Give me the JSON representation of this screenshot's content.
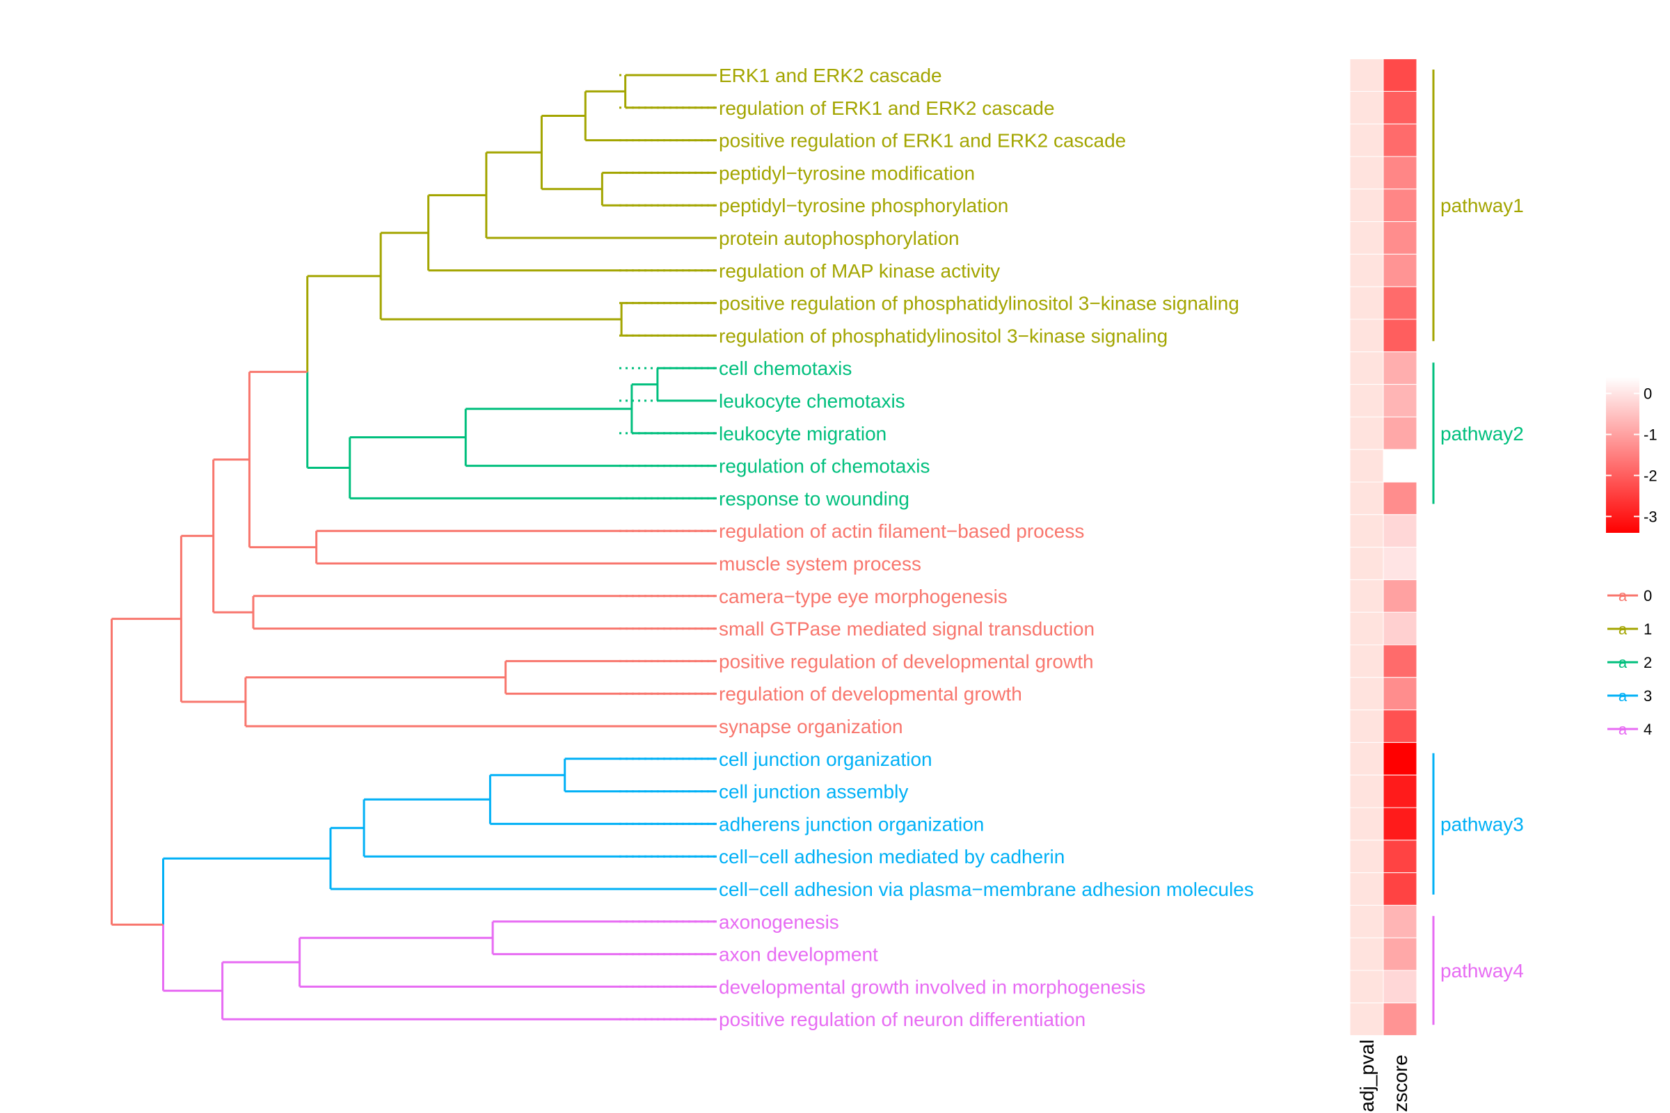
{
  "chart_data": {
    "type": "dendrogram-heatmap",
    "term_label_color_source": "cluster",
    "clusters": [
      {
        "id": "0",
        "color": "#F8766D"
      },
      {
        "id": "1",
        "color": "#A3A500"
      },
      {
        "id": "2",
        "color": "#00BF7D"
      },
      {
        "id": "3",
        "color": "#00B0F6"
      },
      {
        "id": "4",
        "color": "#E76BF3"
      }
    ],
    "terms": [
      {
        "label": "ERK1 and ERK2 cascade",
        "cluster": "1",
        "zscore": -2.3,
        "adj_pval_shade": 0.13
      },
      {
        "label": "regulation of ERK1 and ERK2 cascade",
        "cluster": "1",
        "zscore": -2.0,
        "adj_pval_shade": 0.13
      },
      {
        "label": "positive regulation of ERK1 and ERK2 cascade",
        "cluster": "1",
        "zscore": -1.8,
        "adj_pval_shade": 0.13
      },
      {
        "label": "peptidyl−tyrosine modification",
        "cluster": "1",
        "zscore": -1.4,
        "adj_pval_shade": 0.13
      },
      {
        "label": "peptidyl−tyrosine phosphorylation",
        "cluster": "1",
        "zscore": -1.4,
        "adj_pval_shade": 0.13
      },
      {
        "label": "protein autophosphorylation",
        "cluster": "1",
        "zscore": -1.3,
        "adj_pval_shade": 0.13
      },
      {
        "label": "regulation of MAP kinase activity",
        "cluster": "1",
        "zscore": -1.2,
        "adj_pval_shade": 0.13
      },
      {
        "label": "positive regulation of phosphatidylinositol 3−kinase signaling",
        "cluster": "1",
        "zscore": -1.8,
        "adj_pval_shade": 0.13
      },
      {
        "label": "regulation of phosphatidylinositol 3−kinase signaling",
        "cluster": "1",
        "zscore": -2.0,
        "adj_pval_shade": 0.13
      },
      {
        "label": "cell chemotaxis",
        "cluster": "2",
        "zscore": -0.8,
        "adj_pval_shade": 0.13
      },
      {
        "label": "leukocyte chemotaxis",
        "cluster": "2",
        "zscore": -0.7,
        "adj_pval_shade": 0.13
      },
      {
        "label": "leukocyte migration",
        "cluster": "2",
        "zscore": -0.9,
        "adj_pval_shade": 0.13
      },
      {
        "label": "regulation of chemotaxis",
        "cluster": "2",
        "zscore": 0.4,
        "adj_pval_shade": 0.13
      },
      {
        "label": "response to wounding",
        "cluster": "2",
        "zscore": -1.3,
        "adj_pval_shade": 0.13
      },
      {
        "label": "regulation of actin filament−based process",
        "cluster": "0",
        "zscore": -0.2,
        "adj_pval_shade": 0.13
      },
      {
        "label": "muscle system process",
        "cluster": "0",
        "zscore": 0.0,
        "adj_pval_shade": 0.13
      },
      {
        "label": "camera−type eye morphogenesis",
        "cluster": "0",
        "zscore": -1.0,
        "adj_pval_shade": 0.13
      },
      {
        "label": "small GTPase mediated signal transduction",
        "cluster": "0",
        "zscore": -0.3,
        "adj_pval_shade": 0.13
      },
      {
        "label": "positive regulation of developmental growth",
        "cluster": "0",
        "zscore": -1.8,
        "adj_pval_shade": 0.13
      },
      {
        "label": "regulation of developmental growth",
        "cluster": "0",
        "zscore": -1.3,
        "adj_pval_shade": 0.13
      },
      {
        "label": "synapse organization",
        "cluster": "0",
        "zscore": -2.2,
        "adj_pval_shade": 0.13
      },
      {
        "label": "cell junction organization",
        "cluster": "3",
        "zscore": -3.4,
        "adj_pval_shade": 0.13
      },
      {
        "label": "cell junction assembly",
        "cluster": "3",
        "zscore": -3.0,
        "adj_pval_shade": 0.13
      },
      {
        "label": "adherens junction organization",
        "cluster": "3",
        "zscore": -3.0,
        "adj_pval_shade": 0.13
      },
      {
        "label": "cell−cell adhesion mediated by cadherin",
        "cluster": "3",
        "zscore": -2.4,
        "adj_pval_shade": 0.13
      },
      {
        "label": "cell−cell adhesion via plasma−membrane adhesion molecules",
        "cluster": "3",
        "zscore": -2.4,
        "adj_pval_shade": 0.13
      },
      {
        "label": "axonogenesis",
        "cluster": "4",
        "zscore": -0.7,
        "adj_pval_shade": 0.13
      },
      {
        "label": "axon development",
        "cluster": "4",
        "zscore": -0.9,
        "adj_pval_shade": 0.13
      },
      {
        "label": "developmental growth involved in morphogenesis",
        "cluster": "4",
        "zscore": -0.2,
        "adj_pval_shade": 0.13
      },
      {
        "label": "positive regulation of neuron differentiation",
        "cluster": "4",
        "zscore": -1.2,
        "adj_pval_shade": 0.13
      }
    ],
    "dendrogram": [
      {
        "node": "n1",
        "children": [
          0,
          1
        ],
        "height": 0.355
      },
      {
        "node": "n2",
        "children": [
          "n1",
          2
        ],
        "height": 0.51
      },
      {
        "node": "n3",
        "children": [
          3,
          4
        ],
        "height": 0.445
      },
      {
        "node": "n4",
        "children": [
          "n2",
          "n3"
        ],
        "height": 0.68
      },
      {
        "node": "n5",
        "children": [
          "n4",
          5
        ],
        "height": 0.895
      },
      {
        "node": "n6",
        "children": [
          "n5",
          6
        ],
        "height": 1.12
      },
      {
        "node": "n7",
        "children": [
          7,
          8
        ],
        "height": 0.37
      },
      {
        "node": "n8",
        "children": [
          "n6",
          "n7"
        ],
        "height": 1.305
      },
      {
        "node": "n9",
        "children": [
          9,
          10
        ],
        "height": 0.23
      },
      {
        "node": "n10",
        "children": [
          "n9",
          11
        ],
        "height": 0.33
      },
      {
        "node": "n11",
        "children": [
          "n10",
          12
        ],
        "height": 0.975
      },
      {
        "node": "n12",
        "children": [
          "n11",
          13
        ],
        "height": 1.425
      },
      {
        "node": "n13",
        "children": [
          "n8",
          "n12"
        ],
        "height": 1.59
      },
      {
        "node": "n14",
        "children": [
          14,
          15
        ],
        "height": 1.555
      },
      {
        "node": "n15",
        "children": [
          "n13",
          "n14"
        ],
        "height": 1.815
      },
      {
        "node": "n16",
        "children": [
          16,
          17
        ],
        "height": 1.8
      },
      {
        "node": "n17",
        "children": [
          "n15",
          "n16"
        ],
        "height": 1.955
      },
      {
        "node": "n18",
        "children": [
          18,
          19
        ],
        "height": 0.82
      },
      {
        "node": "n19",
        "children": [
          "n18",
          20
        ],
        "height": 1.83
      },
      {
        "node": "n20",
        "children": [
          "n17",
          "n19"
        ],
        "height": 2.08
      },
      {
        "node": "n21",
        "children": [
          21,
          22
        ],
        "height": 0.59
      },
      {
        "node": "n22",
        "children": [
          "n21",
          23
        ],
        "height": 0.88
      },
      {
        "node": "n23",
        "children": [
          "n22",
          24
        ],
        "height": 1.37
      },
      {
        "node": "n24",
        "children": [
          "n23",
          25
        ],
        "height": 1.5
      },
      {
        "node": "n25",
        "children": [
          26,
          27
        ],
        "height": 0.87
      },
      {
        "node": "n26",
        "children": [
          "n25",
          28
        ],
        "height": 1.62
      },
      {
        "node": "n27",
        "children": [
          "n26",
          29
        ],
        "height": 1.92
      },
      {
        "node": "n28",
        "children": [
          "n24",
          "n27"
        ],
        "height": 2.15
      },
      {
        "node": "n29",
        "children": [
          "n20",
          "n28"
        ],
        "height": 2.35
      }
    ],
    "heatmap_columns": [
      "adj_pval",
      "zscore"
    ],
    "zscore_scale": {
      "low_color": "#FF0000",
      "high_color": "#FFFFFF",
      "min": -3.4,
      "max": 0.4,
      "ticks": [
        0,
        -1,
        -2,
        -3
      ]
    },
    "pathways": [
      {
        "label": "pathway1",
        "first": 0,
        "last": 8,
        "color": "#A3A500"
      },
      {
        "label": "pathway2",
        "first": 9,
        "last": 13,
        "color": "#00BF7D"
      },
      {
        "label": "pathway3",
        "first": 21,
        "last": 25,
        "color": "#00B0F6"
      },
      {
        "label": "pathway4",
        "first": 26,
        "last": 29,
        "color": "#E76BF3"
      }
    ],
    "legend": {
      "glyph": "a",
      "position": "right",
      "items": [
        "0",
        "1",
        "2",
        "3",
        "4"
      ]
    }
  }
}
